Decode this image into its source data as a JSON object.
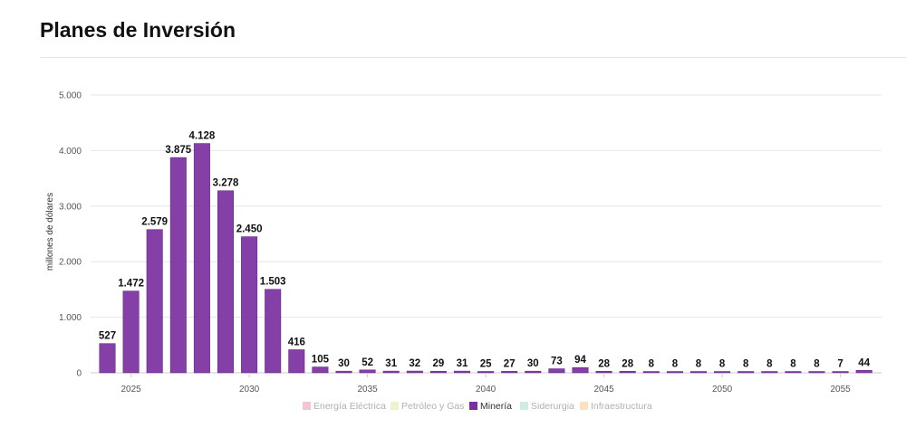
{
  "page": {
    "title": "Planes de Inversión"
  },
  "chart_data": {
    "type": "bar",
    "title": "",
    "xlabel": "",
    "ylabel": "millones de dólares",
    "ylim": [
      0,
      5000
    ],
    "yticks": [
      0,
      1000,
      2000,
      3000,
      4000,
      5000
    ],
    "ytick_labels": [
      "0",
      "1.000",
      "2.000",
      "3.000",
      "4.000",
      "5.000"
    ],
    "xticks": [
      2025,
      2030,
      2035,
      2040,
      2045,
      2050,
      2055
    ],
    "grid": true,
    "legend_position": "bottom",
    "bar_color": "#7a30a0",
    "categories": [
      2024,
      2025,
      2026,
      2027,
      2028,
      2029,
      2030,
      2031,
      2032,
      2033,
      2034,
      2035,
      2036,
      2037,
      2038,
      2039,
      2040,
      2041,
      2042,
      2043,
      2044,
      2045,
      2046,
      2047,
      2048,
      2049,
      2050,
      2051,
      2052,
      2053,
      2054,
      2055,
      2056
    ],
    "series": [
      {
        "name": "Minería",
        "color": "#7a30a0",
        "values": [
          527,
          1472,
          2579,
          3875,
          4128,
          3278,
          2450,
          1503,
          416,
          105,
          30,
          52,
          31,
          32,
          29,
          31,
          25,
          27,
          30,
          73,
          94,
          28,
          28,
          8,
          8,
          8,
          8,
          8,
          8,
          8,
          8,
          7,
          44
        ],
        "value_labels": [
          "527",
          "1.472",
          "2.579",
          "3.875",
          "4.128",
          "3.278",
          "2.450",
          "1.503",
          "416",
          "105",
          "30",
          "52",
          "31",
          "32",
          "29",
          "31",
          "25",
          "27",
          "30",
          "73",
          "94",
          "28",
          "28",
          "8",
          "8",
          "8",
          "8",
          "8",
          "8",
          "8",
          "8",
          "7",
          "44"
        ]
      }
    ],
    "legend": [
      {
        "name": "Energía Eléctrica",
        "color": "#f4c6d2",
        "active": false
      },
      {
        "name": "Petróleo y Gas",
        "color": "#eef3cf",
        "active": false
      },
      {
        "name": "Minería",
        "color": "#7a30a0",
        "active": true
      },
      {
        "name": "Siderurgia",
        "color": "#cfeee2",
        "active": false
      },
      {
        "name": "Infraestructura",
        "color": "#fde0bd",
        "active": false
      }
    ]
  }
}
